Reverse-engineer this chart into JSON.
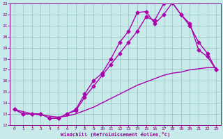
{
  "xlabel": "Windchill (Refroidissement éolien,°C)",
  "xlim": [
    -0.5,
    23.5
  ],
  "ylim": [
    12,
    23
  ],
  "xticks": [
    0,
    1,
    2,
    3,
    4,
    5,
    6,
    7,
    8,
    9,
    10,
    11,
    12,
    13,
    14,
    15,
    16,
    17,
    18,
    19,
    20,
    21,
    22,
    23
  ],
  "yticks": [
    12,
    13,
    14,
    15,
    16,
    17,
    18,
    19,
    20,
    21,
    22,
    23
  ],
  "bg_color": "#c8eaea",
  "grid_color": "#a0c8c8",
  "line_color": "#aa00aa",
  "line1_x": [
    0,
    1,
    2,
    3,
    4,
    5,
    6,
    7,
    8,
    9,
    10,
    11,
    12,
    13,
    14,
    15,
    16,
    17,
    18,
    19,
    20,
    21,
    22,
    23
  ],
  "line1_y": [
    13.4,
    13.0,
    13.0,
    13.0,
    12.6,
    12.6,
    13.0,
    13.3,
    14.5,
    15.5,
    16.5,
    17.5,
    18.5,
    19.5,
    20.5,
    21.8,
    21.5,
    23.0,
    23.1,
    22.0,
    21.0,
    19.5,
    18.5,
    17.0
  ],
  "line2_x": [
    0,
    1,
    2,
    3,
    4,
    5,
    6,
    7,
    8,
    9,
    10,
    11,
    12,
    13,
    14,
    15,
    16,
    17,
    18,
    19,
    20,
    21,
    22,
    23
  ],
  "line2_y": [
    13.4,
    13.0,
    13.0,
    13.0,
    12.6,
    12.6,
    13.0,
    13.4,
    14.8,
    16.0,
    16.7,
    18.0,
    19.5,
    20.5,
    22.2,
    22.3,
    21.2,
    22.0,
    23.1,
    22.0,
    21.2,
    18.8,
    18.2,
    17.0
  ],
  "line3_x": [
    0,
    1,
    2,
    3,
    4,
    5,
    6,
    7,
    8,
    9,
    10,
    11,
    12,
    13,
    14,
    15,
    16,
    17,
    18,
    19,
    20,
    21,
    22,
    23
  ],
  "line3_y": [
    13.4,
    13.2,
    13.0,
    12.9,
    12.8,
    12.7,
    12.8,
    13.0,
    13.3,
    13.6,
    14.0,
    14.4,
    14.8,
    15.2,
    15.6,
    15.9,
    16.2,
    16.5,
    16.7,
    16.8,
    17.0,
    17.1,
    17.2,
    17.2
  ],
  "marker": "D",
  "markersize": 2.5,
  "linewidth": 1.0
}
